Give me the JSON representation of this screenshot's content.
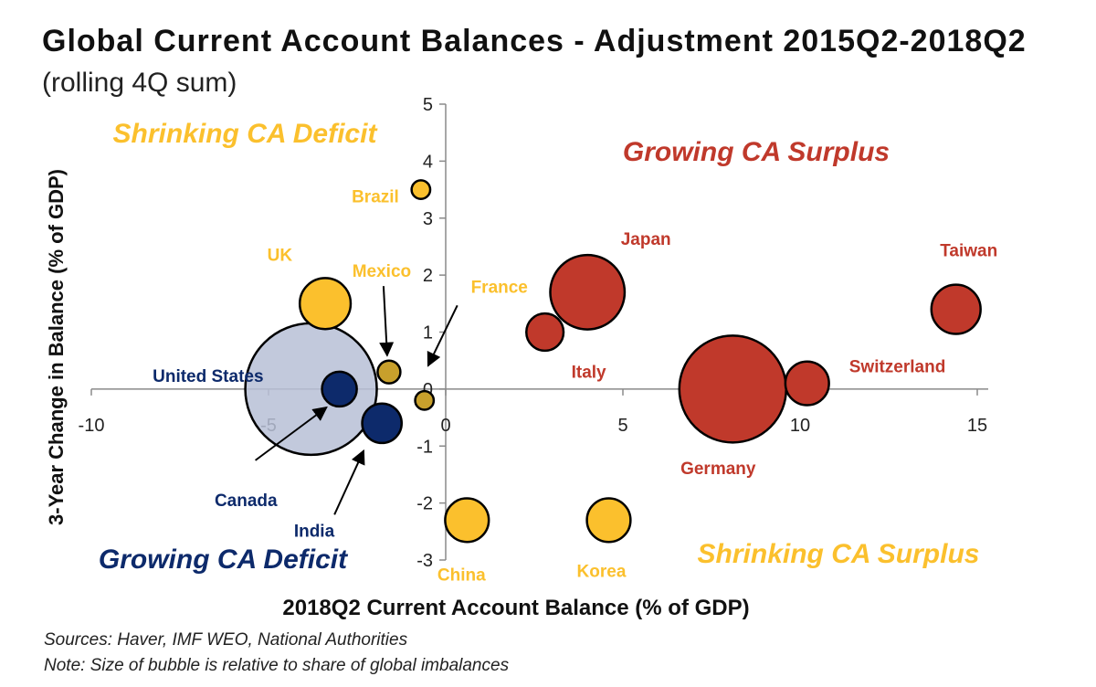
{
  "title": "Global Current Account Balances - Adjustment 2015Q2-2018Q2",
  "subtitle": "(rolling 4Q sum)",
  "footer": {
    "sources": "Sources: Haver, IMF WEO, National Authorities",
    "note": "Note: Size of bubble is relative to share of global imbalances"
  },
  "colors": {
    "surplus": "#c0392b",
    "deficit_shrinking": "#fbc02d",
    "deficit_growing": "#0d2a6b",
    "mexico_france": "#c8a02c",
    "group": "#b7bfd6"
  },
  "chart_data": {
    "type": "scatter",
    "xlabel": "2018Q2 Current Account Balance (% of GDP)",
    "ylabel": "3-Year Change in Balance (% of GDP)",
    "xlim": [
      -10,
      15
    ],
    "ylim": [
      -3,
      5
    ],
    "x_ticks": [
      -10,
      -5,
      0,
      5,
      10,
      15
    ],
    "y_ticks": [
      -3,
      -2,
      -1,
      0,
      1,
      2,
      3,
      4,
      5
    ],
    "quadrant_labels": [
      {
        "text": "Shrinking CA Deficit",
        "color": "#fbc02d"
      },
      {
        "text": "Growing CA Surplus",
        "color": "#c0392b"
      },
      {
        "text": "Growing CA Deficit",
        "color": "#0d2a6b"
      },
      {
        "text": "Shrinking CA Surplus",
        "color": "#fbc02d"
      }
    ],
    "points": [
      {
        "name": "United States",
        "x": -3.8,
        "y": 0.0,
        "size": 1.0,
        "color": "#0d2a6b"
      },
      {
        "name": "Canada",
        "x": -3.0,
        "y": 0.0,
        "size": 0.07,
        "color": "#0d2a6b"
      },
      {
        "name": "India",
        "x": -1.8,
        "y": -0.6,
        "size": 0.09,
        "color": "#0d2a6b"
      },
      {
        "name": "Mexico",
        "x": -1.6,
        "y": 0.3,
        "size": 0.03,
        "color": "#c8a02c"
      },
      {
        "name": "France",
        "x": -0.6,
        "y": -0.2,
        "size": 0.02,
        "color": "#c8a02c"
      },
      {
        "name": "UK",
        "x": -3.4,
        "y": 1.5,
        "size": 0.15,
        "color": "#fbc02d"
      },
      {
        "name": "Brazil",
        "x": -0.7,
        "y": 3.5,
        "size": 0.02,
        "color": "#fbc02d"
      },
      {
        "name": "China",
        "x": 0.6,
        "y": -2.3,
        "size": 0.11,
        "color": "#fbc02d"
      },
      {
        "name": "Korea",
        "x": 4.6,
        "y": -2.3,
        "size": 0.11,
        "color": "#fbc02d"
      },
      {
        "name": "Japan",
        "x": 4.0,
        "y": 1.7,
        "size": 0.32,
        "color": "#c0392b"
      },
      {
        "name": "Italy",
        "x": 2.8,
        "y": 1.0,
        "size": 0.08,
        "color": "#c0392b"
      },
      {
        "name": "Germany",
        "x": 8.1,
        "y": 0.0,
        "size": 0.66,
        "color": "#c0392b"
      },
      {
        "name": "Switzerland",
        "x": 10.2,
        "y": 0.1,
        "size": 0.11,
        "color": "#c0392b"
      },
      {
        "name": "Taiwan",
        "x": 14.4,
        "y": 1.4,
        "size": 0.14,
        "color": "#c0392b"
      }
    ],
    "group": {
      "name": "United States",
      "members": [
        "Canada",
        "India",
        "Mexico",
        "France"
      ]
    }
  }
}
